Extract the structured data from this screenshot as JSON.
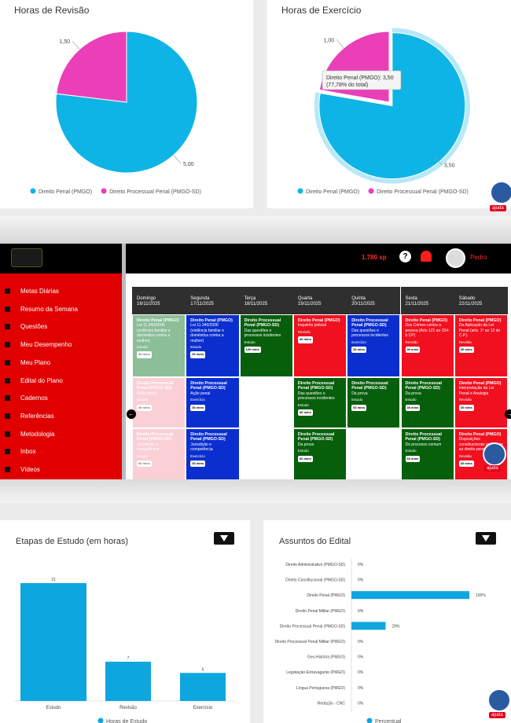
{
  "chart_data": [
    {
      "type": "pie",
      "title": "Horas de Revisão",
      "categories": [
        "Direito Penal (PMGO)",
        "Direito Processual Penal (PMGO-SD)"
      ],
      "values": [
        5,
        1.5
      ],
      "value_labels": [
        "5,00",
        "1,50"
      ],
      "colors": [
        "#0fb4e6",
        "#ea3fb9"
      ]
    },
    {
      "type": "pie",
      "title": "Horas de Exercício",
      "categories": [
        "Direito Penal (PMGO)",
        "Direito Processual Penal (PMGO-SD)"
      ],
      "values": [
        3.5,
        1
      ],
      "value_labels": [
        "3,50",
        "1,00"
      ],
      "colors": [
        "#0fb4e6",
        "#ea3fb9"
      ],
      "tooltip": [
        "Direito Penal (PMGO): 3,50",
        "(77,78% do total)"
      ]
    },
    {
      "type": "bar",
      "title": "Etapas de Estudo (em horas)",
      "categories": [
        "Estudo",
        "Revisão",
        "Exercício"
      ],
      "series": [
        {
          "name": "Horas de Estudo",
          "color": "#0ea6df",
          "values": [
            21,
            7,
            5
          ]
        }
      ]
    },
    {
      "type": "hbar",
      "title": "Assuntos do Edital",
      "categories": [
        "Direito Administrativo (PMGO-SD)",
        "Direito Constitucional (PMGO-SD)",
        "Direito Penal (PMGO)",
        "Direito Penal Militar (PMGO)",
        "Direito Processual Penal (PMGO-SD)",
        "Direito Processual Penal Militar (PMGO)",
        "Geo-História (PMGO)",
        "Legislação Extravagante (PMGO)",
        "Língua Portuguesa (PMGO)",
        "Redação - CNC"
      ],
      "series": [
        {
          "name": "Percentual",
          "color": "#0ea6df",
          "values": [
            0,
            0,
            100,
            0,
            29,
            0,
            0,
            0,
            0,
            0
          ],
          "value_labels": [
            "0%",
            "0%",
            "100%",
            "0%",
            "29%",
            "0%",
            "0%",
            "0%",
            "0%",
            "0%"
          ]
        }
      ]
    }
  ],
  "app": {
    "xp": "1.780 xp",
    "user": "Pedro",
    "help": "ajuda",
    "menu": [
      "Metas Diárias",
      "Resumo da Semana",
      "Questões",
      "Meu Desempenho",
      "Meu Plano",
      "Edital do Plano",
      "Cadernos",
      "Referências",
      "Metodologia",
      "Inbox",
      "Vídeos"
    ],
    "days": [
      [
        "Domingo",
        "16/11/2025"
      ],
      [
        "Segunda",
        "17/11/2025"
      ],
      [
        "Terça",
        "18/11/2025"
      ],
      [
        "Quarta",
        "19/11/2025"
      ],
      [
        "Quinta",
        "20/11/2025"
      ],
      [
        "Sexta",
        "21/11/2025"
      ],
      [
        "Sábado",
        "22/11/2025"
      ]
    ],
    "rows": [
      [
        {
          "subject": "Direito Penal (PMGO)",
          "topic": "Lei 11.340/2006 (violência familiar e doméstica contra a mulher)",
          "kind": "Estudo",
          "duration": "30 mins",
          "color": "#2f8a45"
        },
        {
          "subject": "Direito Penal (PMGO)",
          "topic": "Lei 11.340/2006 (violência familiar e doméstica contra a mulher)",
          "kind": "Estudo",
          "duration": "30 mins",
          "color": "#0b2fcf"
        },
        {
          "subject": "Direito Processual Penal (PMGO-SD)",
          "topic": "Das questões e processos incidentes",
          "kind": "Estudo",
          "duration": "120 mins",
          "color": "#075f0c"
        },
        {
          "subject": "Direito Penal (PMGO)",
          "topic": "Inquérito policial",
          "kind": "Revisão",
          "duration": "30 mins",
          "color": "#f01020"
        },
        {
          "subject": "Direito Processual Penal (PMGO-SD)",
          "topic": "Das questões e processos incidentes",
          "kind": "Exercício",
          "duration": "30 mins",
          "color": "#0b2fcf"
        },
        {
          "subject": "Direito Penal (PMGO)",
          "topic": "Dos Crimes contra a pessoa (Arts 121 ao 154-b CP)",
          "kind": "Revisão",
          "duration": "30 mins",
          "color": "#f01020"
        },
        {
          "subject": "Direito Penal (PMGO)",
          "topic": "Da Aplicação da Lei Penal (arts. 1º ao 12 do C.P.)",
          "kind": "Revisão",
          "duration": "30 mins",
          "color": "#f01020"
        }
      ],
      [
        {
          "subject": "Direito Processual Penal (PMGO-SD)",
          "topic": "Ação penal",
          "kind": "Estudo",
          "duration": "30 mins",
          "color": "#f6a8b6"
        },
        {
          "subject": "Direito Processual Penal (PMGO-SD)",
          "topic": "Ação penal",
          "kind": "Exercício",
          "duration": "30 mins",
          "color": "#0b2fcf"
        },
        null,
        {
          "subject": "Direito Processual Penal (PMGO-SD)",
          "topic": "Das questões e processos incidentes",
          "kind": "Estudo",
          "duration": "30 mins",
          "color": "#075f0c"
        },
        {
          "subject": "Direito Processual Penal (PMGO-SD)",
          "topic": "Da prova",
          "kind": "Estudo",
          "duration": "60 mins",
          "color": "#075f0c"
        },
        {
          "subject": "Direito Processual Penal (PMGO-SD)",
          "topic": "Da prova",
          "kind": "Estudo",
          "duration": "30 mins",
          "color": "#075f0c"
        },
        {
          "subject": "Direito Penal (PMGO)",
          "topic": "Interpretação da Lei Penal e Analogia",
          "kind": "Revisão",
          "duration": "30 mins",
          "color": "#f01020"
        }
      ],
      [
        {
          "subject": "Direito Processual Penal (PMGO-SD)",
          "topic": "Jurisdição e competência",
          "kind": "Estudo",
          "duration": "60 mins",
          "color": "#f6a8b6"
        },
        {
          "subject": "Direito Processual Penal (PMGO-SD)",
          "topic": "Jurisdição e competência",
          "kind": "Exercício",
          "duration": "30 mins",
          "color": "#0b2fcf"
        },
        null,
        {
          "subject": "Direito Processual Penal (PMGO-SD)",
          "topic": "Da prova",
          "kind": "Estudo",
          "duration": "60 mins",
          "color": "#075f0c"
        },
        null,
        {
          "subject": "Direito Processual Penal (PMGO-SD)",
          "topic": "Do processo comum",
          "kind": "Estudo",
          "duration": "60 mins",
          "color": "#075f0c"
        },
        {
          "subject": "Direito Penal (PMGO)",
          "topic": "Disposições constitucionais aplicáveis ao direito penal",
          "kind": "Revisão",
          "duration": "30 mins",
          "color": "#f01020"
        }
      ]
    ]
  }
}
